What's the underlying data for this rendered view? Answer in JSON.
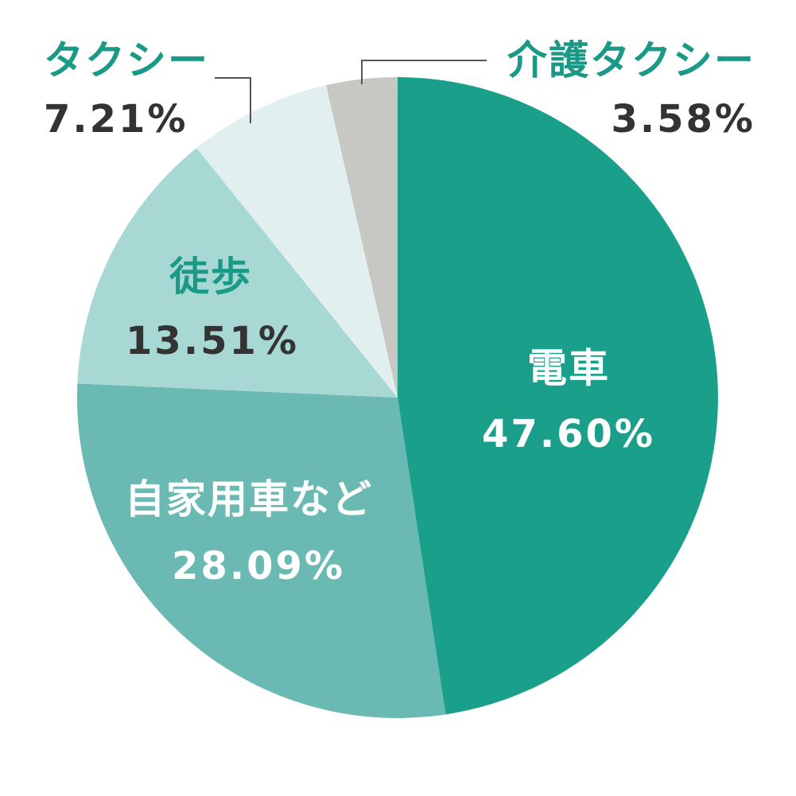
{
  "chart_data": {
    "type": "pie",
    "title": "",
    "slices": [
      {
        "label": "電車",
        "value_label": "47.60%",
        "value": 47.6,
        "color": "#1aa08a"
      },
      {
        "label": "自家用車など",
        "value_label": "28.09%",
        "value": 28.09,
        "color": "#6bb9b3"
      },
      {
        "label": "徒歩",
        "value_label": "13.51%",
        "value": 13.51,
        "color": "#a8d8d4"
      },
      {
        "label": "タクシー",
        "value_label": "7.21%",
        "value": 7.21,
        "color": "#e1f0ef"
      },
      {
        "label": "介護タクシー",
        "value_label": "3.58%",
        "value": 3.58,
        "color": "#c7c8c3"
      }
    ],
    "colors": {
      "inside_label": "#ffffff",
      "outside_name": "#1a9a86",
      "outside_value": "#333333",
      "inside_value_dark": "#333333",
      "inside_name_accent": "#1a9a86",
      "leader_line": "#555555"
    }
  }
}
